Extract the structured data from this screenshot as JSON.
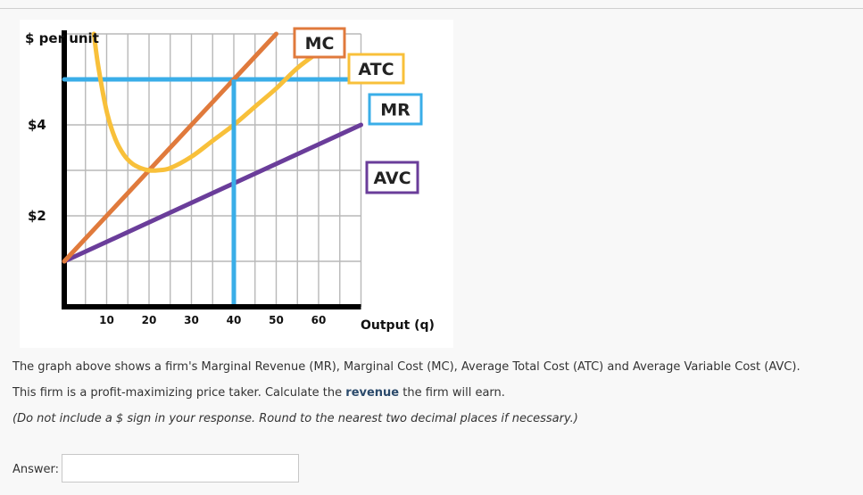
{
  "chart_data": {
    "type": "line",
    "ylabel": "$ per unit",
    "xlabel": "Output (q)",
    "xlim": [
      0,
      70
    ],
    "ylim": [
      0,
      6
    ],
    "x_ticks": [
      {
        "v": 10,
        "label": "10"
      },
      {
        "v": 20,
        "label": "20"
      },
      {
        "v": 30,
        "label": "30"
      },
      {
        "v": 40,
        "label": "40"
      },
      {
        "v": 50,
        "label": "50"
      },
      {
        "v": 60,
        "label": "60"
      }
    ],
    "y_ticks": [
      {
        "v": 2,
        "label": "$2"
      },
      {
        "v": 4,
        "label": "$4"
      }
    ],
    "grid": true,
    "series": [
      {
        "name": "MR",
        "color": "#3aaee8",
        "x": [
          0,
          70
        ],
        "y": [
          5,
          5
        ]
      },
      {
        "name": "MC",
        "color": "#e07a3c",
        "x": [
          0,
          50
        ],
        "y": [
          1,
          6
        ]
      },
      {
        "name": "ATC",
        "color": "#f8c03a",
        "x": [
          7,
          8,
          10,
          12,
          14,
          16,
          18,
          20,
          22,
          25,
          30,
          35,
          40,
          45,
          50,
          55,
          60
        ],
        "y": [
          6,
          5.3,
          4.3,
          3.7,
          3.35,
          3.15,
          3.05,
          3.0,
          3.0,
          3.05,
          3.3,
          3.65,
          4.0,
          4.4,
          4.8,
          5.25,
          5.6
        ]
      },
      {
        "name": "AVC",
        "color": "#6a3d9a",
        "x": [
          0,
          70
        ],
        "y": [
          1,
          4
        ]
      }
    ],
    "projection_line": {
      "color": "#3aaee8",
      "x": 40,
      "y": 5
    },
    "legend": [
      {
        "name": "MC",
        "border": "#e07a3c"
      },
      {
        "name": "ATC",
        "border": "#f8c03a"
      },
      {
        "name": "MR",
        "border": "#3aaee8"
      },
      {
        "name": "AVC",
        "border": "#6a3d9a"
      }
    ]
  },
  "question": {
    "line1": "The graph above shows a firm's Marginal Revenue (MR), Marginal Cost (MC), Average Total Cost (ATC) and Average Variable Cost (AVC).",
    "line2_pre": "This firm is a profit-maximizing price taker. Calculate the ",
    "line2_bold": "revenue",
    "line2_post": " the firm will earn.",
    "line3": "(Do not include a $ sign in your response. Round to the nearest two decimal places if necessary.)"
  },
  "answer": {
    "label": "Answer:",
    "value": ""
  }
}
